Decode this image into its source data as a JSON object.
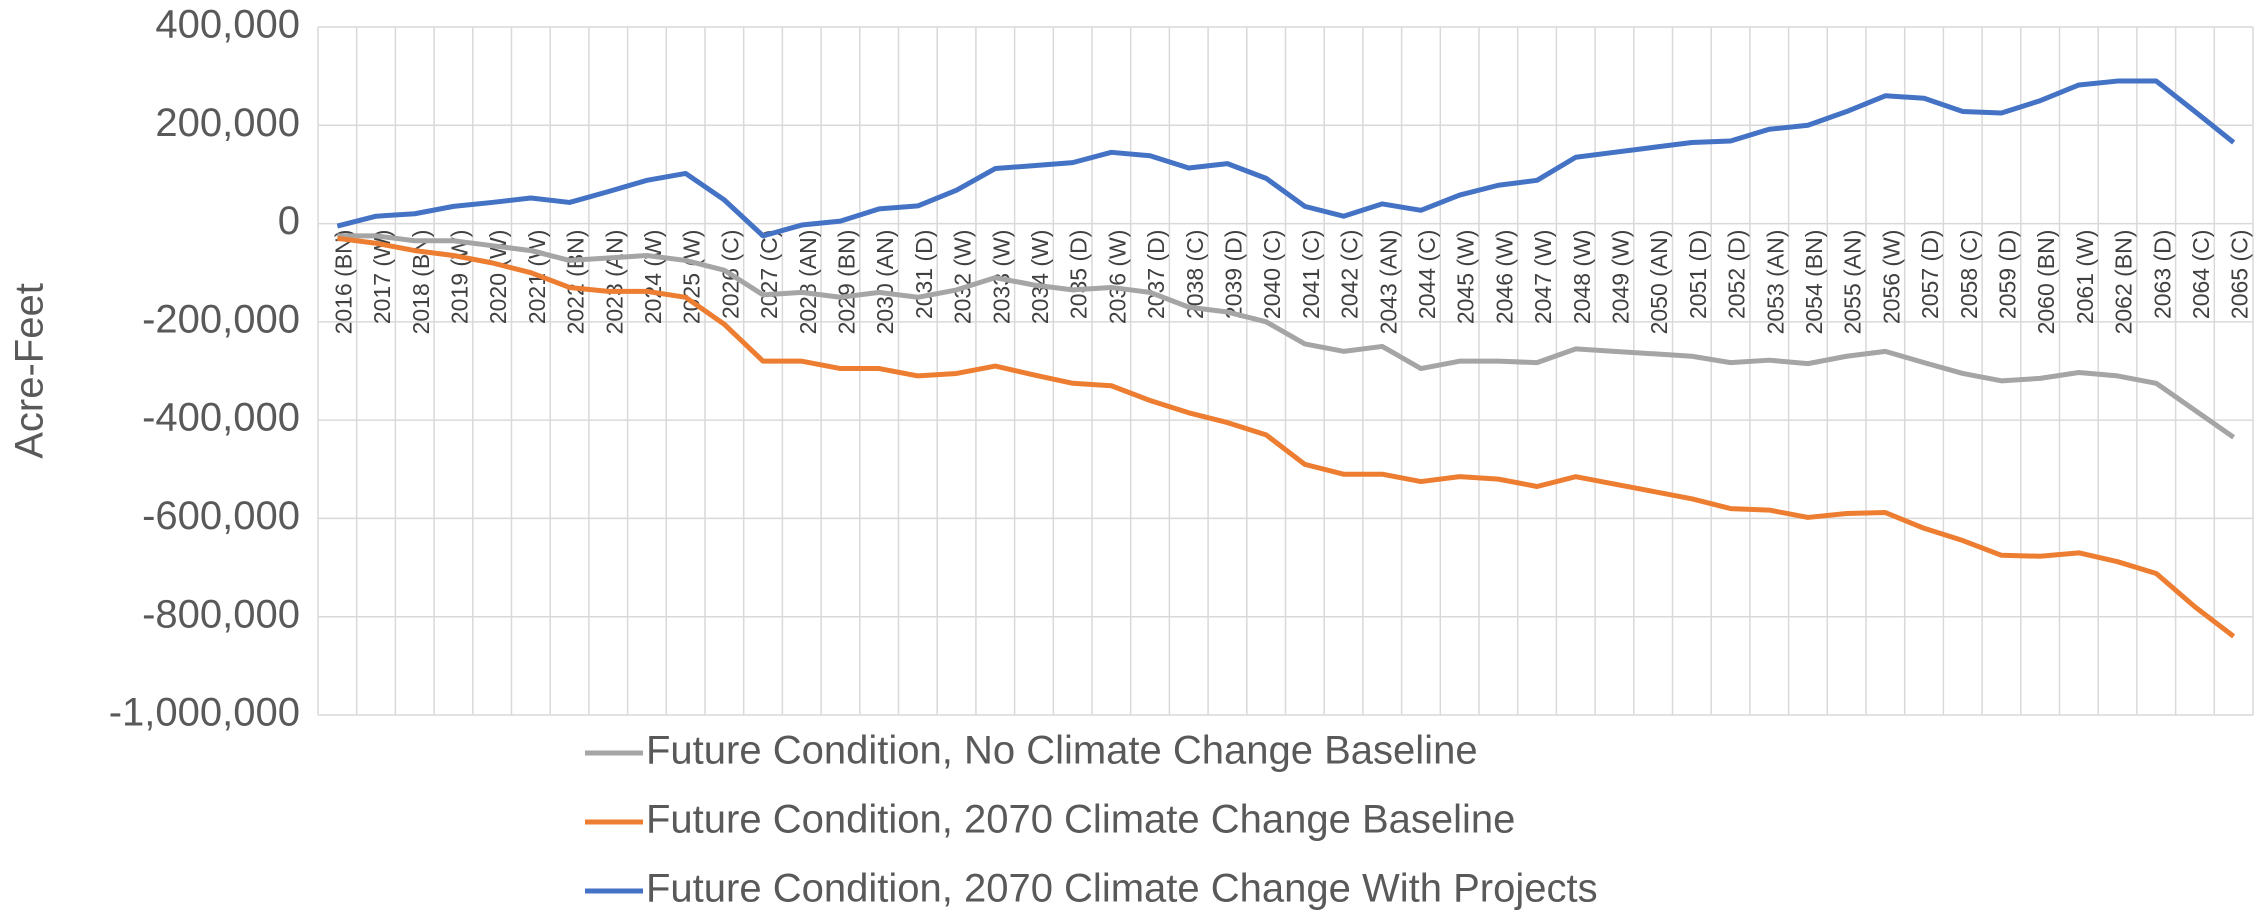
{
  "chart_data": {
    "type": "line",
    "y_label": "Acre-Feet",
    "categories": [
      "2016 (BN)",
      "2017 (W)",
      "2018 (BN)",
      "2019 (W)",
      "2020 (W)",
      "2021 (W)",
      "2022 (BN)",
      "2023 (AN)",
      "2024 (W)",
      "2025 (W)",
      "2026 (C)",
      "2027 (C)",
      "2028 (AN)",
      "2029 (BN)",
      "2030 (AN)",
      "2031 (D)",
      "2032 (W)",
      "2033 (W)",
      "2034 (W)",
      "2035 (D)",
      "2036 (W)",
      "2037 (D)",
      "2038 (C)",
      "2039 (D)",
      "2040 (C)",
      "2041 (C)",
      "2042 (C)",
      "2043 (AN)",
      "2044 (C)",
      "2045 (W)",
      "2046 (W)",
      "2047 (W)",
      "2048 (W)",
      "2049 (W)",
      "2050 (AN)",
      "2051 (D)",
      "2052 (D)",
      "2053 (AN)",
      "2054 (BN)",
      "2055 (AN)",
      "2056 (W)",
      "2057 (D)",
      "2058 (C)",
      "2059 (D)",
      "2060 (BN)",
      "2061 (W)",
      "2062 (BN)",
      "2063 (D)",
      "2064 (C)",
      "2065 (C)"
    ],
    "series": [
      {
        "name": "Future Condition, No Climate Change Baseline",
        "color": "#a5a5a5",
        "values": [
          -25000,
          -25000,
          -35000,
          -35000,
          -45000,
          -55000,
          -75000,
          -70000,
          -65000,
          -75000,
          -95000,
          -145000,
          -140000,
          -150000,
          -140000,
          -150000,
          -135000,
          -110000,
          -125000,
          -135000,
          -130000,
          -140000,
          -170000,
          -180000,
          -200000,
          -245000,
          -260000,
          -250000,
          -295000,
          -280000,
          -280000,
          -283000,
          -255000,
          -260000,
          -265000,
          -270000,
          -283000,
          -278000,
          -285000,
          -270000,
          -260000,
          -283000,
          -305000,
          -320000,
          -315000,
          -303000,
          -310000,
          -325000,
          -380000,
          -435000
        ]
      },
      {
        "name": "Future Condition, 2070 Climate Change Baseline",
        "color": "#ed7d31",
        "values": [
          -30000,
          -40000,
          -55000,
          -65000,
          -80000,
          -100000,
          -130000,
          -138000,
          -138000,
          -150000,
          -205000,
          -280000,
          -280000,
          -295000,
          -295000,
          -310000,
          -305000,
          -290000,
          -308000,
          -325000,
          -330000,
          -360000,
          -385000,
          -405000,
          -430000,
          -490000,
          -510000,
          -510000,
          -525000,
          -515000,
          -520000,
          -535000,
          -515000,
          -530000,
          -545000,
          -560000,
          -580000,
          -583000,
          -598000,
          -590000,
          -588000,
          -620000,
          -645000,
          -675000,
          -677000,
          -670000,
          -688000,
          -712000,
          -780000,
          -840000
        ]
      },
      {
        "name": "Future Condition, 2070 Climate Change With Projects",
        "color": "#4472c4",
        "values": [
          -5000,
          15000,
          20000,
          35000,
          43000,
          52000,
          43000,
          65000,
          88000,
          102000,
          48000,
          -25000,
          -3000,
          5000,
          30000,
          36000,
          68000,
          112000,
          118000,
          124000,
          145000,
          138000,
          113000,
          122000,
          92000,
          35000,
          15000,
          40000,
          27000,
          58000,
          78000,
          88000,
          135000,
          145000,
          155000,
          165000,
          168000,
          192000,
          200000,
          228000,
          260000,
          255000,
          228000,
          225000,
          250000,
          282000,
          290000,
          290000,
          228000,
          165000
        ]
      }
    ],
    "ylim": [
      -1000000,
      400000
    ],
    "yticks": [
      {
        "value": -1000000,
        "label": "-1,000,000"
      },
      {
        "value": -800000,
        "label": "-800,000"
      },
      {
        "value": -600000,
        "label": "-600,000"
      },
      {
        "value": -400000,
        "label": "-400,000"
      },
      {
        "value": -200000,
        "label": "-200,000"
      },
      0,
      {
        "value": 200000,
        "label": "200,000"
      },
      {
        "value": 400000,
        "label": "400,000"
      }
    ],
    "grid": true
  }
}
